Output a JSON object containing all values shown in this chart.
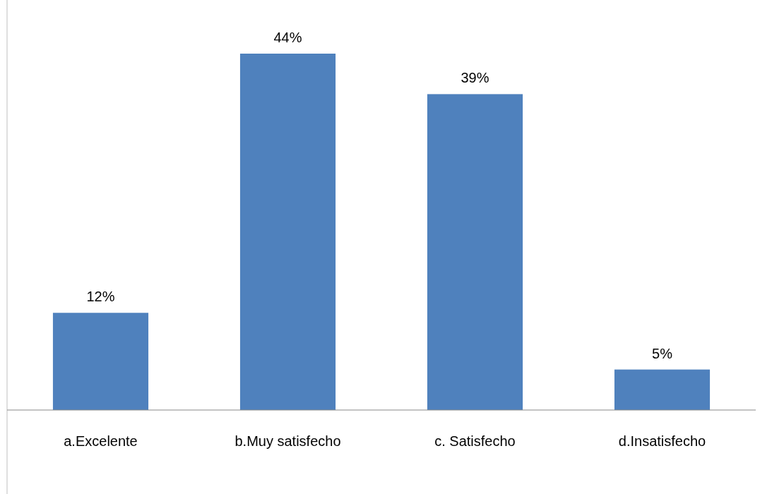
{
  "chart_data": {
    "type": "bar",
    "categories": [
      "a.Excelente",
      "b.Muy satisfecho",
      "c. Satisfecho",
      "d.Insatisfecho"
    ],
    "values": [
      12,
      44,
      39,
      5
    ],
    "value_labels": [
      "12%",
      "44%",
      "39%",
      "5%"
    ],
    "color": "#4f81bd"
  }
}
